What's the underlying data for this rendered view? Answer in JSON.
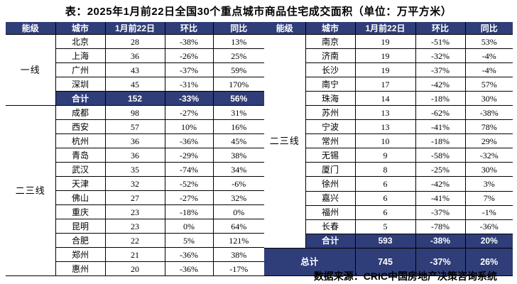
{
  "chart_data": {
    "type": "table",
    "title": "表：2025年1月前22日全国30个重点城市商品住宅成交面积（单位：万平方米）",
    "source": "数据来源：CRIC中国房地产决策咨询系统",
    "columns": [
      "能级",
      "城市",
      "1月前22日",
      "环比",
      "同比"
    ],
    "colors": {
      "header_bg": "#2f3d78",
      "header_text": "#ffffff",
      "green": "#00a65c",
      "red": "#ee0000",
      "body_text": "#000000"
    },
    "left": {
      "groups": [
        {
          "tier": "一线",
          "rows": [
            {
              "city": "北京",
              "value": "28",
              "mom": "-38%",
              "yoy": "13%",
              "mom_c": "black",
              "yoy_c": "black"
            },
            {
              "city": "上海",
              "value": "36",
              "mom": "-26%",
              "yoy": "25%",
              "mom_c": "black",
              "yoy_c": "black"
            },
            {
              "city": "广州",
              "value": "43",
              "mom": "-37%",
              "yoy": "59%",
              "mom_c": "black",
              "yoy_c": "black"
            },
            {
              "city": "深圳",
              "value": "45",
              "mom": "-31%",
              "yoy": "170%",
              "mom_c": "black",
              "yoy_c": "black"
            }
          ],
          "total": {
            "label": "合计",
            "value": "152",
            "mom": "-33%",
            "yoy": "56%"
          }
        },
        {
          "tier": "二三线",
          "rows": [
            {
              "city": "成都",
              "value": "98",
              "mom": "-27%",
              "yoy": "31%",
              "mom_c": "black",
              "yoy_c": "black"
            },
            {
              "city": "西安",
              "value": "57",
              "mom": "10%",
              "yoy": "16%",
              "mom_c": "red",
              "yoy_c": "red"
            },
            {
              "city": "杭州",
              "value": "36",
              "mom": "-36%",
              "yoy": "45%",
              "mom_c": "black",
              "yoy_c": "black"
            },
            {
              "city": "青岛",
              "value": "36",
              "mom": "-29%",
              "yoy": "38%",
              "mom_c": "black",
              "yoy_c": "black"
            },
            {
              "city": "武汉",
              "value": "35",
              "mom": "-74%",
              "yoy": "34%",
              "mom_c": "black",
              "yoy_c": "black"
            },
            {
              "city": "天津",
              "value": "32",
              "mom": "-52%",
              "yoy": "-6%",
              "mom_c": "green",
              "yoy_c": "green"
            },
            {
              "city": "佛山",
              "value": "27",
              "mom": "-27%",
              "yoy": "32%",
              "mom_c": "black",
              "yoy_c": "black"
            },
            {
              "city": "重庆",
              "value": "23",
              "mom": "-18%",
              "yoy": "0%",
              "mom_c": "black",
              "yoy_c": "black"
            },
            {
              "city": "昆明",
              "value": "23",
              "mom": "0%",
              "yoy": "64%",
              "mom_c": "black",
              "yoy_c": "black"
            },
            {
              "city": "合肥",
              "value": "22",
              "mom": "5%",
              "yoy": "121%",
              "mom_c": "red",
              "yoy_c": "red"
            },
            {
              "city": "郑州",
              "value": "21",
              "mom": "-36%",
              "yoy": "38%",
              "mom_c": "black",
              "yoy_c": "black"
            },
            {
              "city": "惠州",
              "value": "20",
              "mom": "-36%",
              "yoy": "-17%",
              "mom_c": "green",
              "yoy_c": "green"
            }
          ],
          "total": null
        }
      ]
    },
    "right": {
      "groups": [
        {
          "tier": "二三线",
          "rows": [
            {
              "city": "南京",
              "value": "19",
              "mom": "-51%",
              "yoy": "53%",
              "mom_c": "green",
              "yoy_c": "green"
            },
            {
              "city": "济南",
              "value": "19",
              "mom": "-32%",
              "yoy": "-4%",
              "mom_c": "green",
              "yoy_c": "green"
            },
            {
              "city": "长沙",
              "value": "19",
              "mom": "-37%",
              "yoy": "-4%",
              "mom_c": "green",
              "yoy_c": "green"
            },
            {
              "city": "南宁",
              "value": "17",
              "mom": "-42%",
              "yoy": "57%",
              "mom_c": "green",
              "yoy_c": "green"
            },
            {
              "city": "珠海",
              "value": "14",
              "mom": "-18%",
              "yoy": "30%",
              "mom_c": "black",
              "yoy_c": "black"
            },
            {
              "city": "苏州",
              "value": "13",
              "mom": "-62%",
              "yoy": "-38%",
              "mom_c": "green",
              "yoy_c": "green"
            },
            {
              "city": "宁波",
              "value": "13",
              "mom": "-41%",
              "yoy": "78%",
              "mom_c": "green",
              "yoy_c": "red"
            },
            {
              "city": "常州",
              "value": "10",
              "mom": "-18%",
              "yoy": "29%",
              "mom_c": "black",
              "yoy_c": "black"
            },
            {
              "city": "无锡",
              "value": "9",
              "mom": "-58%",
              "yoy": "-32%",
              "mom_c": "green",
              "yoy_c": "green"
            },
            {
              "city": "厦门",
              "value": "8",
              "mom": "-25%",
              "yoy": "30%",
              "mom_c": "black",
              "yoy_c": "black"
            },
            {
              "city": "徐州",
              "value": "6",
              "mom": "-42%",
              "yoy": "3%",
              "mom_c": "black",
              "yoy_c": "black"
            },
            {
              "city": "嘉兴",
              "value": "6",
              "mom": "-41%",
              "yoy": "7%",
              "mom_c": "black",
              "yoy_c": "black"
            },
            {
              "city": "福州",
              "value": "6",
              "mom": "-37%",
              "yoy": "-1%",
              "mom_c": "green",
              "yoy_c": "green"
            },
            {
              "city": "长春",
              "value": "5",
              "mom": "-78%",
              "yoy": "-36%",
              "mom_c": "green",
              "yoy_c": "green"
            }
          ],
          "total": {
            "label": "合计",
            "value": "593",
            "mom": "-38%",
            "yoy": "20%"
          }
        }
      ],
      "grand_total": {
        "label": "总计",
        "value": "745",
        "mom": "-37%",
        "yoy": "26%"
      }
    }
  }
}
